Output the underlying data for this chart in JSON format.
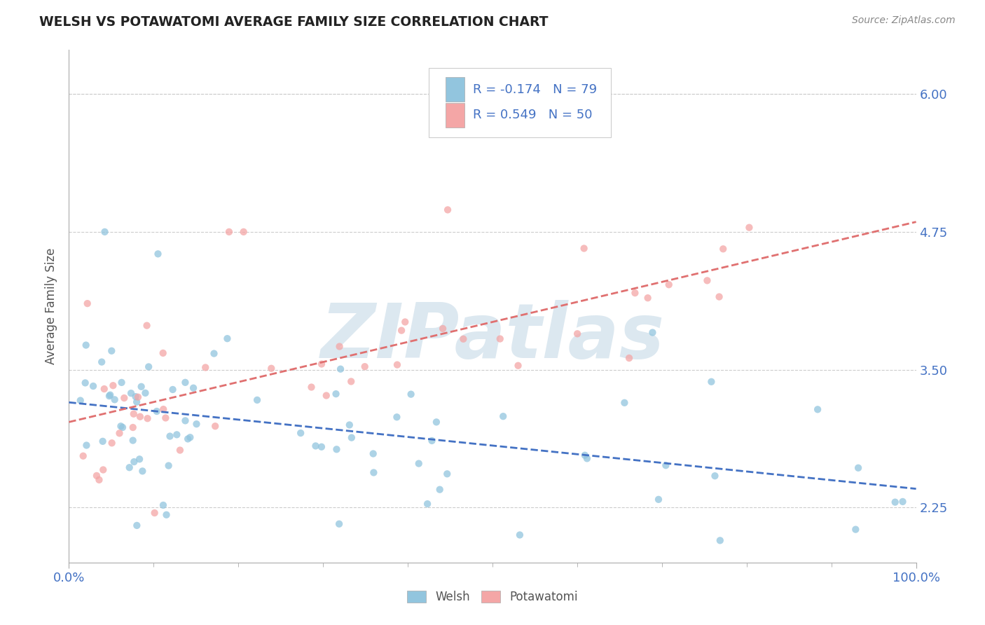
{
  "title": "WELSH VS POTAWATOMI AVERAGE FAMILY SIZE CORRELATION CHART",
  "source_text": "Source: ZipAtlas.com",
  "ylabel": "Average Family Size",
  "xlim": [
    0,
    1
  ],
  "ylim": [
    1.75,
    6.4
  ],
  "yticks": [
    2.25,
    3.5,
    4.75,
    6.0
  ],
  "xticklabels": [
    "0.0%",
    "100.0%"
  ],
  "welsh_color": "#92c5de",
  "potawatomi_color": "#f4a6a6",
  "trend_welsh_color": "#4472c4",
  "trend_potawatomi_color": "#e07070",
  "welsh_R": -0.174,
  "welsh_N": 79,
  "potawatomi_R": 0.549,
  "potawatomi_N": 50,
  "legend_text_color": "#4472c4",
  "background_color": "#ffffff",
  "grid_color": "#cccccc",
  "watermark": "ZIPatlas",
  "watermark_color": "#dce8f0",
  "title_color": "#222222",
  "source_color": "#888888",
  "ylabel_color": "#555555",
  "tick_label_color": "#4472c4",
  "xtick_color": "#4472c4"
}
